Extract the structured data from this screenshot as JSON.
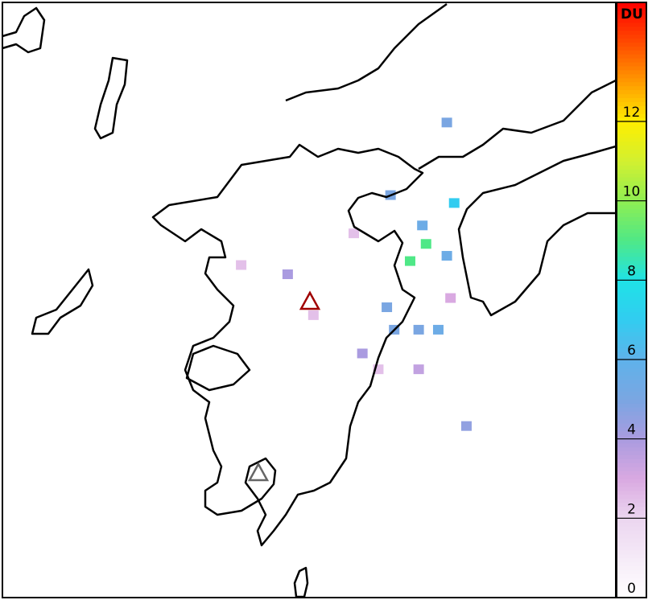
{
  "colorbar": {
    "label": "DU",
    "lim": [
      0,
      15
    ],
    "ticks": [
      0,
      2,
      4,
      6,
      8,
      10,
      12
    ],
    "colormap": [
      {
        "value": 0,
        "color": "#ffffff"
      },
      {
        "value": 2,
        "color": "#ecd6f0"
      },
      {
        "value": 3,
        "color": "#d9a9e1"
      },
      {
        "value": 4,
        "color": "#aa9be0"
      },
      {
        "value": 5,
        "color": "#7aa6e2"
      },
      {
        "value": 6,
        "color": "#5fb2ea"
      },
      {
        "value": 7,
        "color": "#32ccf0"
      },
      {
        "value": 8,
        "color": "#1fe2e6"
      },
      {
        "value": 9,
        "color": "#4fe887"
      },
      {
        "value": 10,
        "color": "#8fee52"
      },
      {
        "value": 11,
        "color": "#d2f030"
      },
      {
        "value": 12,
        "color": "#ffee00"
      },
      {
        "value": 13,
        "color": "#ff9a00"
      },
      {
        "value": 14,
        "color": "#ff4a00"
      },
      {
        "value": 15,
        "color": "#ff0000"
      }
    ]
  },
  "map": {
    "xlim": [
      128.57,
      133.58
    ],
    "ylim": [
      30.63,
      35.14
    ],
    "cells": [
      {
        "lon": 132.03,
        "lat": 33.31,
        "value": 9
      },
      {
        "lon": 131.9,
        "lat": 33.18,
        "value": 9
      },
      {
        "lon": 132.26,
        "lat": 33.62,
        "value": 7
      },
      {
        "lon": 131.74,
        "lat": 33.68,
        "value": 5
      },
      {
        "lon": 132.0,
        "lat": 33.45,
        "value": 5.5
      },
      {
        "lon": 132.2,
        "lat": 33.22,
        "value": 5.5
      },
      {
        "lon": 131.71,
        "lat": 32.83,
        "value": 5
      },
      {
        "lon": 131.97,
        "lat": 32.66,
        "value": 5
      },
      {
        "lon": 132.13,
        "lat": 32.66,
        "value": 5.5
      },
      {
        "lon": 131.77,
        "lat": 32.66,
        "value": 5
      },
      {
        "lon": 132.2,
        "lat": 34.23,
        "value": 5
      },
      {
        "lon": 132.36,
        "lat": 31.93,
        "value": 4.5
      },
      {
        "lon": 130.9,
        "lat": 33.08,
        "value": 4
      },
      {
        "lon": 131.51,
        "lat": 32.48,
        "value": 4
      },
      {
        "lon": 131.97,
        "lat": 32.36,
        "value": 3.5
      },
      {
        "lon": 131.11,
        "lat": 32.77,
        "value": 2.5
      },
      {
        "lon": 130.52,
        "lat": 33.15,
        "value": 2.5
      },
      {
        "lon": 132.23,
        "lat": 32.9,
        "value": 3
      },
      {
        "lon": 131.44,
        "lat": 33.39,
        "value": 2.5
      },
      {
        "lon": 131.64,
        "lat": 32.36,
        "value": 2.5
      }
    ]
  }
}
